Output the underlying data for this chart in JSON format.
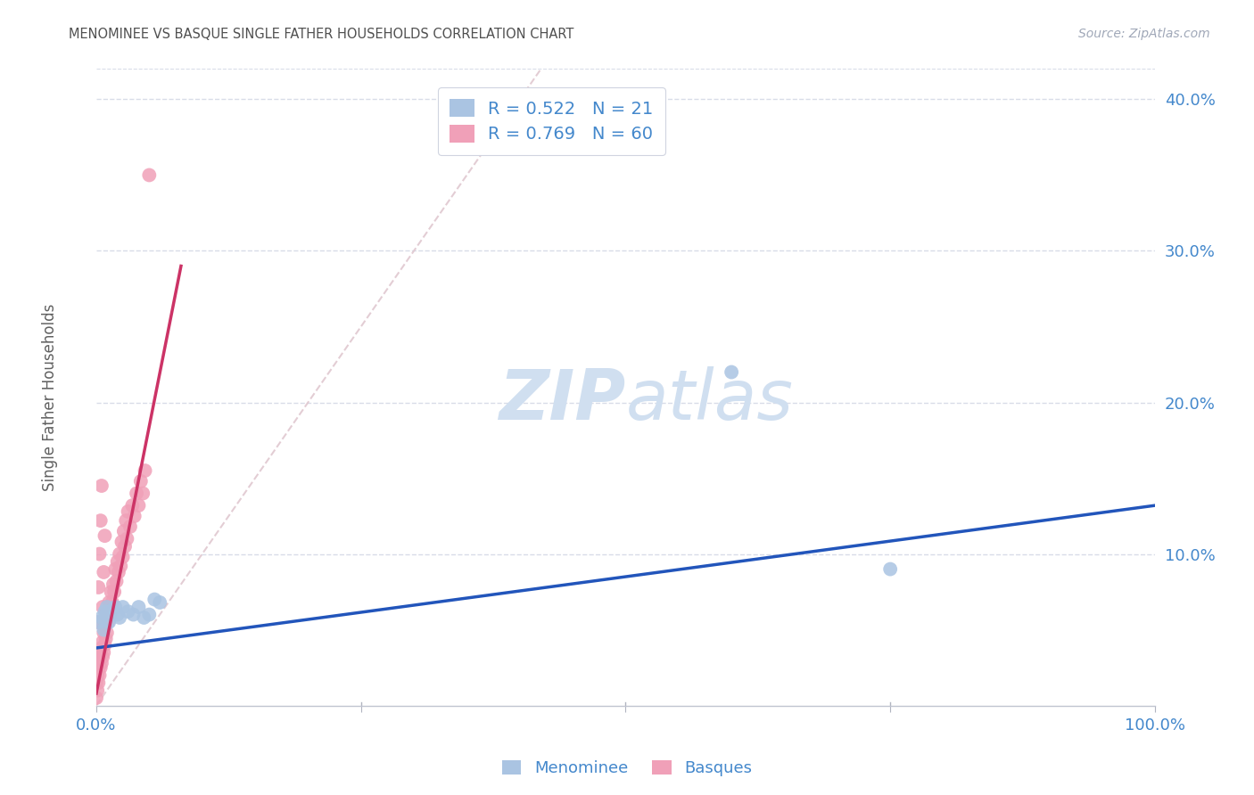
{
  "title": "MENOMINEE VS BASQUE SINGLE FATHER HOUSEHOLDS CORRELATION CHART",
  "source": "Source: ZipAtlas.com",
  "ylabel": "Single Father Households",
  "xlim": [
    0.0,
    1.0
  ],
  "ylim": [
    0.0,
    0.42
  ],
  "menominee_R": 0.522,
  "menominee_N": 21,
  "basque_R": 0.769,
  "basque_N": 60,
  "menominee_color": "#aac4e2",
  "basque_color": "#f0a0b8",
  "menominee_line_color": "#2255bb",
  "basque_line_color": "#cc3366",
  "ref_line_color": "#e0c8d0",
  "watermark_color": "#d0dff0",
  "grid_color": "#d8dce8",
  "title_color": "#505050",
  "axis_label_color": "#4488cc",
  "background_color": "#ffffff",
  "menominee_x": [
    0.003,
    0.005,
    0.007,
    0.008,
    0.009,
    0.01,
    0.012,
    0.015,
    0.018,
    0.02,
    0.022,
    0.025,
    0.03,
    0.035,
    0.04,
    0.045,
    0.05,
    0.055,
    0.06,
    0.6,
    0.75
  ],
  "menominee_y": [
    0.055,
    0.058,
    0.05,
    0.062,
    0.06,
    0.065,
    0.055,
    0.063,
    0.065,
    0.06,
    0.058,
    0.065,
    0.062,
    0.06,
    0.065,
    0.058,
    0.06,
    0.07,
    0.068,
    0.22,
    0.09
  ],
  "basque_x": [
    0.0,
    0.0,
    0.001,
    0.001,
    0.002,
    0.002,
    0.003,
    0.003,
    0.004,
    0.004,
    0.005,
    0.005,
    0.006,
    0.006,
    0.007,
    0.007,
    0.008,
    0.008,
    0.009,
    0.009,
    0.01,
    0.01,
    0.011,
    0.012,
    0.013,
    0.014,
    0.015,
    0.016,
    0.017,
    0.018,
    0.019,
    0.02,
    0.021,
    0.022,
    0.023,
    0.024,
    0.025,
    0.026,
    0.027,
    0.028,
    0.029,
    0.03,
    0.032,
    0.034,
    0.036,
    0.038,
    0.04,
    0.042,
    0.044,
    0.046,
    0.0,
    0.001,
    0.002,
    0.003,
    0.004,
    0.005,
    0.05,
    0.006,
    0.007,
    0.008
  ],
  "basque_y": [
    0.005,
    0.015,
    0.01,
    0.02,
    0.015,
    0.025,
    0.02,
    0.03,
    0.025,
    0.035,
    0.028,
    0.038,
    0.032,
    0.042,
    0.035,
    0.048,
    0.04,
    0.052,
    0.044,
    0.058,
    0.048,
    0.062,
    0.055,
    0.068,
    0.06,
    0.075,
    0.068,
    0.08,
    0.075,
    0.09,
    0.082,
    0.095,
    0.088,
    0.1,
    0.092,
    0.108,
    0.098,
    0.115,
    0.105,
    0.122,
    0.11,
    0.128,
    0.118,
    0.132,
    0.125,
    0.14,
    0.132,
    0.148,
    0.14,
    0.155,
    0.03,
    0.055,
    0.078,
    0.1,
    0.122,
    0.145,
    0.35,
    0.065,
    0.088,
    0.112
  ],
  "men_line_x0": 0.0,
  "men_line_x1": 1.0,
  "men_line_y0": 0.038,
  "men_line_y1": 0.132,
  "basq_line_x0": 0.0,
  "basq_line_x1": 0.08,
  "basq_line_y0": 0.008,
  "basq_line_y1": 0.29,
  "ref_line_x0": 0.0,
  "ref_line_x1": 0.42,
  "ref_line_y0": 0.0,
  "ref_line_y1": 0.42
}
